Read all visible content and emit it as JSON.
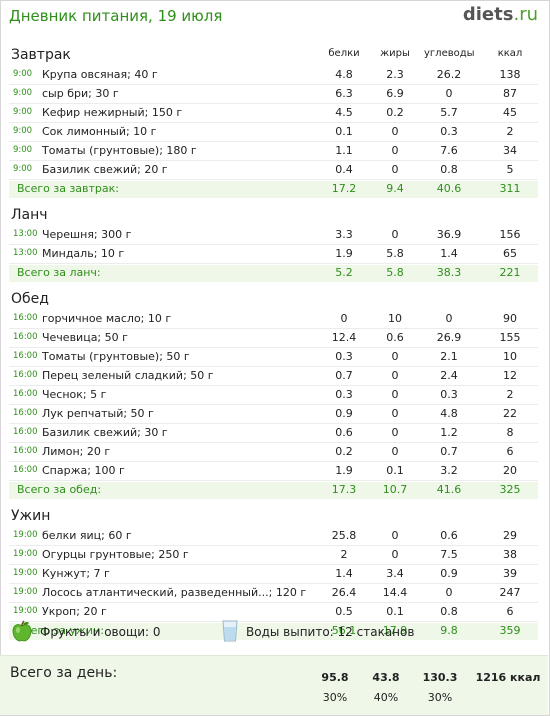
{
  "header": {
    "title": "Дневник питания, 19 июля",
    "logo_main": "diets",
    "logo_dot": ".",
    "logo_tld": "ru"
  },
  "columns": {
    "protein": "белки",
    "fat": "жиры",
    "carbs": "углеводы",
    "kcal": "ккал"
  },
  "meals": [
    {
      "name": "Завтрак",
      "total_label": "Всего за завтрак:",
      "items": [
        {
          "time": "9:00",
          "name": "Крупа овсяная; 40 г",
          "protein": "4.8",
          "fat": "2.3",
          "carbs": "26.2",
          "kcal": "138"
        },
        {
          "time": "9:00",
          "name": "сыр бри; 30 г",
          "protein": "6.3",
          "fat": "6.9",
          "carbs": "0",
          "kcal": "87"
        },
        {
          "time": "9:00",
          "name": "Кефир нежирный; 150 г",
          "protein": "4.5",
          "fat": "0.2",
          "carbs": "5.7",
          "kcal": "45"
        },
        {
          "time": "9:00",
          "name": "Сок лимонный; 10 г",
          "protein": "0.1",
          "fat": "0",
          "carbs": "0.3",
          "kcal": "2"
        },
        {
          "time": "9:00",
          "name": "Томаты (грунтовые); 180 г",
          "protein": "1.1",
          "fat": "0",
          "carbs": "7.6",
          "kcal": "34"
        },
        {
          "time": "9:00",
          "name": "Базилик свежий; 20 г",
          "protein": "0.4",
          "fat": "0",
          "carbs": "0.8",
          "kcal": "5"
        }
      ],
      "total": {
        "protein": "17.2",
        "fat": "9.4",
        "carbs": "40.6",
        "kcal": "311"
      }
    },
    {
      "name": "Ланч",
      "total_label": "Всего за ланч:",
      "items": [
        {
          "time": "13:00",
          "name": "Черешня; 300 г",
          "protein": "3.3",
          "fat": "0",
          "carbs": "36.9",
          "kcal": "156"
        },
        {
          "time": "13:00",
          "name": "Миндаль; 10 г",
          "protein": "1.9",
          "fat": "5.8",
          "carbs": "1.4",
          "kcal": "65"
        }
      ],
      "total": {
        "protein": "5.2",
        "fat": "5.8",
        "carbs": "38.3",
        "kcal": "221"
      }
    },
    {
      "name": "Обед",
      "total_label": "Всего за обед:",
      "items": [
        {
          "time": "16:00",
          "name": "горчичное масло; 10 г",
          "protein": "0",
          "fat": "10",
          "carbs": "0",
          "kcal": "90"
        },
        {
          "time": "16:00",
          "name": "Чечевица; 50 г",
          "protein": "12.4",
          "fat": "0.6",
          "carbs": "26.9",
          "kcal": "155"
        },
        {
          "time": "16:00",
          "name": "Томаты (грунтовые); 50 г",
          "protein": "0.3",
          "fat": "0",
          "carbs": "2.1",
          "kcal": "10"
        },
        {
          "time": "16:00",
          "name": "Перец зеленый сладкий; 50 г",
          "protein": "0.7",
          "fat": "0",
          "carbs": "2.4",
          "kcal": "12"
        },
        {
          "time": "16:00",
          "name": "Чеснок; 5 г",
          "protein": "0.3",
          "fat": "0",
          "carbs": "0.3",
          "kcal": "2"
        },
        {
          "time": "16:00",
          "name": "Лук репчатый; 50 г",
          "protein": "0.9",
          "fat": "0",
          "carbs": "4.8",
          "kcal": "22"
        },
        {
          "time": "16:00",
          "name": "Базилик свежий; 30 г",
          "protein": "0.6",
          "fat": "0",
          "carbs": "1.2",
          "kcal": "8"
        },
        {
          "time": "16:00",
          "name": "Лимон; 20 г",
          "protein": "0.2",
          "fat": "0",
          "carbs": "0.7",
          "kcal": "6"
        },
        {
          "time": "16:00",
          "name": "Спаржа; 100 г",
          "protein": "1.9",
          "fat": "0.1",
          "carbs": "3.2",
          "kcal": "20"
        }
      ],
      "total": {
        "protein": "17.3",
        "fat": "10.7",
        "carbs": "41.6",
        "kcal": "325"
      }
    },
    {
      "name": "Ужин",
      "total_label": "Всего за ужин:",
      "items": [
        {
          "time": "19:00",
          "name": "белки яиц; 60 г",
          "protein": "25.8",
          "fat": "0",
          "carbs": "0.6",
          "kcal": "29"
        },
        {
          "time": "19:00",
          "name": "Огурцы грунтовые; 250 г",
          "protein": "2",
          "fat": "0",
          "carbs": "7.5",
          "kcal": "38"
        },
        {
          "time": "19:00",
          "name": "Кунжут; 7 г",
          "protein": "1.4",
          "fat": "3.4",
          "carbs": "0.9",
          "kcal": "39"
        },
        {
          "time": "19:00",
          "name": "Лосось атлантический, разведенный...; 120 г",
          "protein": "26.4",
          "fat": "14.4",
          "carbs": "0",
          "kcal": "247"
        },
        {
          "time": "19:00",
          "name": "Укроп; 20 г",
          "protein": "0.5",
          "fat": "0.1",
          "carbs": "0.8",
          "kcal": "6"
        }
      ],
      "total": {
        "protein": "56.1",
        "fat": "17.9",
        "carbs": "9.8",
        "kcal": "359"
      }
    }
  ],
  "extras": {
    "fruit_label": "Фрукты и овощи: 0",
    "water_label": "Воды выпито: 12 стаканов",
    "fruit_icon": "apple-icon",
    "water_icon": "glass-icon"
  },
  "day": {
    "label": "Всего за день:",
    "protein": "95.8",
    "fat": "43.8",
    "carbs": "130.3",
    "kcal": "1216 ккал",
    "protein_pct": "30%",
    "fat_pct": "40%",
    "carbs_pct": "30%"
  },
  "colors": {
    "accent": "#2f8f1a",
    "total_bg": "#eef7e8"
  }
}
